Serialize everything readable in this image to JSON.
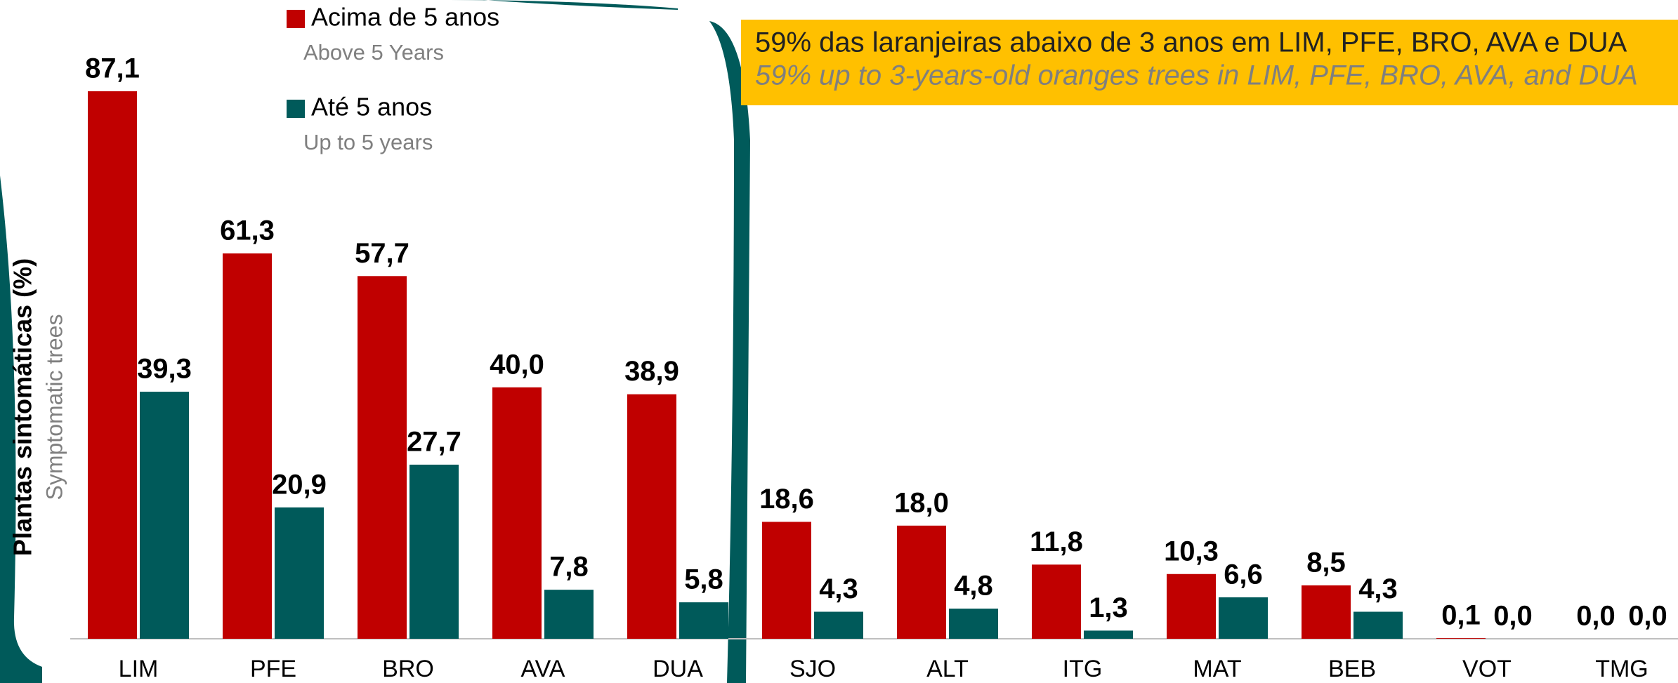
{
  "chart_data": {
    "type": "bar",
    "y_label": "Plantas sintomáticas (%)",
    "y_label_en": "Symptomatic trees",
    "annotation": "59% das laranjeiras abaixo de 3 anos em LIM, PFE, BRO, AVA e DUA",
    "annotation_en": "59% up to 3-years-old oranges trees in LIM, PFE, BRO, AVA, and DUA",
    "categories": [
      "LIM",
      "PFE",
      "BRO",
      "AVA",
      "DUA",
      "SJO",
      "ALT",
      "ITG",
      "MAT",
      "BEB",
      "VOT",
      "TMG"
    ],
    "series": [
      {
        "name": "Acima de 5 anos",
        "name_en": "Above 5 Years",
        "color": "#c00000",
        "values": [
          87.1,
          61.3,
          57.7,
          40.0,
          38.9,
          18.6,
          18.0,
          11.8,
          10.3,
          8.5,
          0.1,
          0.0
        ],
        "value_labels": [
          "87,1",
          "61,3",
          "57,7",
          "40,0",
          "38,9",
          "18,6",
          "18,0",
          "11,8",
          "10,3",
          "8,5",
          "0,1",
          "0,0"
        ]
      },
      {
        "name": "Até 5 anos",
        "name_en": "Up to 5 years",
        "color": "#005a5a",
        "values": [
          39.3,
          20.9,
          27.7,
          7.8,
          5.8,
          4.3,
          4.8,
          1.3,
          6.6,
          4.3,
          0.0,
          0.0
        ],
        "value_labels": [
          "39,3",
          "20,9",
          "27,7",
          "7,8",
          "5,8",
          "4,3",
          "4,8",
          "1,3",
          "6,6",
          "4,3",
          "0,0",
          "0,0"
        ]
      }
    ]
  }
}
